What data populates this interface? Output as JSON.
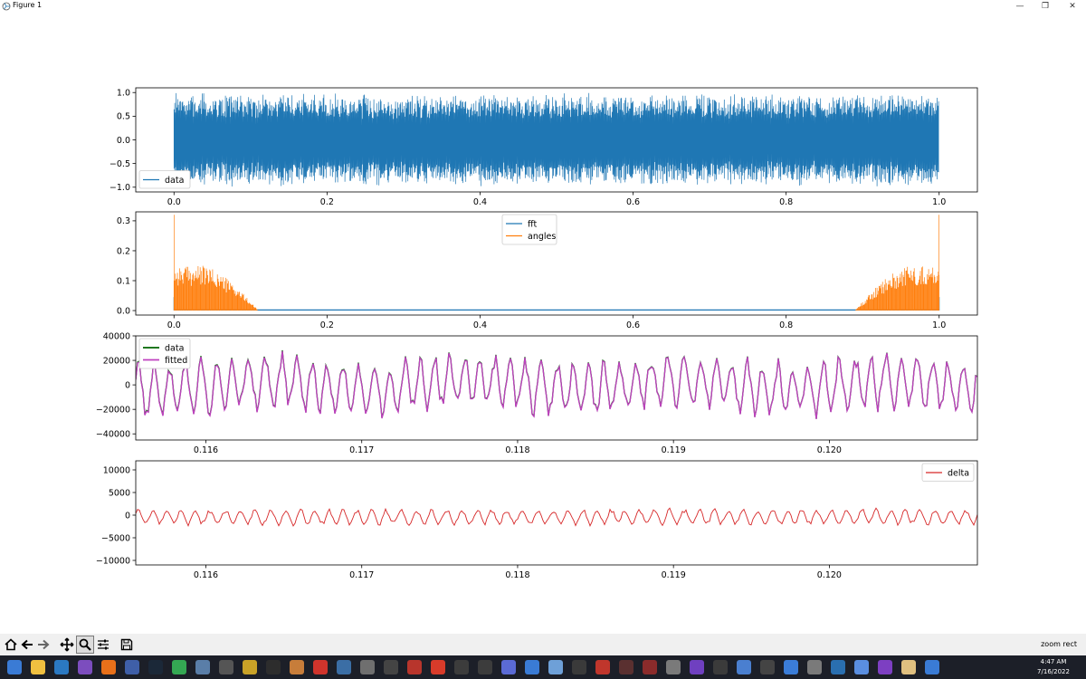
{
  "window": {
    "title": "Figure 1"
  },
  "toolbar": {
    "message": "zoom rect",
    "buttons": [
      {
        "name": "home-icon"
      },
      {
        "name": "back-arrow-icon"
      },
      {
        "name": "forward-arrow-icon"
      },
      {
        "name": "pan-icon"
      },
      {
        "name": "zoom-icon"
      },
      {
        "name": "configure-subplots-icon"
      },
      {
        "name": "save-icon"
      }
    ]
  },
  "taskbar": {
    "time": "4:47 AM",
    "date": "7/16/2022"
  },
  "colors": {
    "blue": "#1f77b4",
    "orange": "#ff7f0e",
    "green": "#006400",
    "purple": "#bf40bf",
    "red": "#d62728"
  },
  "chart_data": [
    {
      "type": "line",
      "x_range": [
        0.0,
        1.0
      ],
      "xlim": [
        -0.05,
        1.05
      ],
      "ylim": [
        -1.1,
        1.1
      ],
      "xticks": [
        0.0,
        0.2,
        0.4,
        0.6,
        0.8,
        1.0
      ],
      "xtick_labels": [
        "0.0",
        "0.2",
        "0.4",
        "0.6",
        "0.8",
        "1.0"
      ],
      "yticks": [
        1.0,
        0.5,
        0.0,
        -0.5,
        -1.0
      ],
      "ytick_labels": [
        "1.0",
        "0.5",
        "0.0",
        "−0.5",
        "−1.0"
      ],
      "series": [
        {
          "name": "data",
          "color": "#1f77b4",
          "envelope": [
            -1.0,
            1.0
          ]
        }
      ],
      "legend": "lower-left"
    },
    {
      "type": "line",
      "x_range": [
        0.0,
        1.0
      ],
      "xlim": [
        -0.05,
        1.05
      ],
      "ylim": [
        -0.015,
        0.33
      ],
      "xticks": [
        0.0,
        0.2,
        0.4,
        0.6,
        0.8,
        1.0
      ],
      "xtick_labels": [
        "0.0",
        "0.2",
        "0.4",
        "0.6",
        "0.8",
        "1.0"
      ],
      "yticks": [
        0.3,
        0.2,
        0.1,
        0.0
      ],
      "ytick_labels": [
        "0.3",
        "0.2",
        "0.1",
        "0.0"
      ],
      "series": [
        {
          "name": "fft",
          "color": "#1f77b4",
          "values_note": "near 0.0 across full range"
        },
        {
          "name": "angles",
          "color": "#ff7f0e",
          "peak": 0.32,
          "band_max": 0.15,
          "active_x": [
            [
              0.0,
              0.11
            ],
            [
              0.89,
              1.0
            ]
          ]
        }
      ],
      "legend": "upper-center"
    },
    {
      "type": "line",
      "xlim": [
        0.11555,
        0.12095
      ],
      "ylim": [
        -45000,
        40000
      ],
      "xticks": [
        0.116,
        0.117,
        0.118,
        0.119,
        0.12
      ],
      "xtick_labels": [
        "0.116",
        "0.117",
        "0.118",
        "0.119",
        "0.120"
      ],
      "yticks": [
        40000,
        20000,
        0,
        -20000,
        -40000
      ],
      "ytick_labels": [
        "40000",
        "20000",
        "0",
        "−20000",
        "−40000"
      ],
      "series": [
        {
          "name": "data",
          "color": "#006400",
          "range": [
            -36000,
            38000
          ]
        },
        {
          "name": "fitted",
          "color": "#bf40bf",
          "range": [
            -36000,
            38000
          ]
        }
      ],
      "legend": "upper-left"
    },
    {
      "type": "line",
      "xlim": [
        0.11555,
        0.12095
      ],
      "ylim": [
        -11000,
        12000
      ],
      "xticks": [
        0.116,
        0.117,
        0.118,
        0.119,
        0.12
      ],
      "xtick_labels": [
        "0.116",
        "0.117",
        "0.118",
        "0.119",
        "0.120"
      ],
      "yticks": [
        10000,
        5000,
        0,
        -5000,
        -10000
      ],
      "ytick_labels": [
        "10000",
        "5000",
        "0",
        "−5000",
        "−10000"
      ],
      "series": [
        {
          "name": "delta",
          "color": "#d62728",
          "range": [
            -5000,
            2800
          ]
        }
      ],
      "legend": "upper-right"
    }
  ]
}
